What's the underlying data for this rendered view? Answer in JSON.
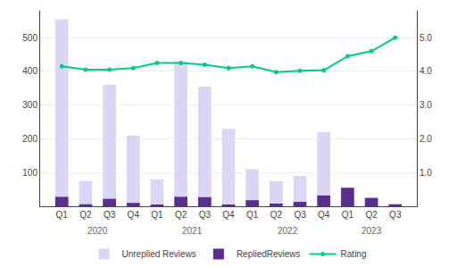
{
  "chart_data": {
    "type": "bar",
    "categories": [
      "Q1",
      "Q2",
      "Q3",
      "Q4",
      "Q1",
      "Q2",
      "Q3",
      "Q4",
      "Q1",
      "Q2",
      "Q3",
      "Q4",
      "Q1",
      "Q2",
      "Q3"
    ],
    "category_groups": [
      "2020",
      "2020",
      "2020",
      "2020",
      "2021",
      "2021",
      "2021",
      "2021",
      "2022",
      "2022",
      "2022",
      "2022",
      "2023",
      "2023",
      "2023"
    ],
    "series": [
      {
        "name": "Unreplied Reviews",
        "color": "#ddd5f5",
        "values": [
          555,
          75,
          360,
          210,
          80,
          430,
          355,
          230,
          110,
          75,
          90,
          220,
          0,
          22,
          4
        ]
      },
      {
        "name": "RepliedReviews",
        "color": "#5b2d8e",
        "values": [
          28,
          6,
          22,
          10,
          5,
          28,
          27,
          4,
          18,
          8,
          13,
          32,
          55,
          25,
          6
        ]
      },
      {
        "name": "Rating",
        "type": "line",
        "color": "#00cc88",
        "marker": "circle",
        "line_style": "solid",
        "axis": "y2",
        "values": [
          4.15,
          4.05,
          4.05,
          4.1,
          4.25,
          4.25,
          4.2,
          4.1,
          4.15,
          3.98,
          4.02,
          4.03,
          4.45,
          4.6,
          5.0
        ]
      }
    ],
    "ylim": [
      0,
      580
    ],
    "yticks": [
      100,
      200,
      300,
      400,
      500
    ],
    "y2lim": [
      0,
      5.8
    ],
    "y2ticks": [
      {
        "value": 1.0,
        "label": "1.0"
      },
      {
        "value": 2.0,
        "label": "2.0"
      },
      {
        "value": 3.0,
        "label": "3.0"
      },
      {
        "value": 4.0,
        "label": "4.0"
      },
      {
        "value": 5.0,
        "label": "5.0"
      }
    ],
    "grid": true,
    "legend": "bottom"
  }
}
